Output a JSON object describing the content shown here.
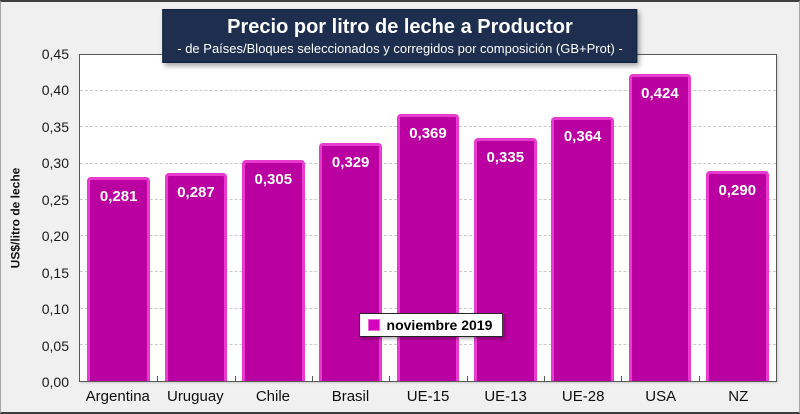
{
  "header": {
    "title": "Precio por litro de leche a Productor",
    "subtitle": "-  de Países/Bloques seleccionados y corregidos por composición (GB+Prot) -"
  },
  "legend": {
    "label": "noviembre 2019",
    "marker_color": "#d400bc"
  },
  "colors": {
    "title_background": "#1d2e4e",
    "bar_fill": "#ba00a0",
    "bar_border": "#e93bd0",
    "plot_background": "#ffffff",
    "chart_background": "#f1f0f1",
    "gridline": "#c9c9c9"
  },
  "chart_data": {
    "type": "bar",
    "title": "Precio por litro de leche a Productor",
    "subtitle": "-  de Países/Bloques seleccionados y corregidos por composición (GB+Prot) -",
    "categories": [
      "Argentina",
      "Uruguay",
      "Chile",
      "Brasil",
      "UE-15",
      "UE-13",
      "UE-28",
      "USA",
      "NZ"
    ],
    "values": [
      0.281,
      0.287,
      0.305,
      0.329,
      0.369,
      0.335,
      0.364,
      0.424,
      0.29
    ],
    "value_labels": [
      "0,281",
      "0,287",
      "0,305",
      "0,329",
      "0,369",
      "0,335",
      "0,364",
      "0,424",
      "0,290"
    ],
    "series_name": "noviembre 2019",
    "xlabel": "",
    "ylabel": "US$/litro de leche",
    "ylim": [
      0,
      0.45
    ],
    "ytick_step": 0.05,
    "ytick_labels": [
      "0,00",
      "0,05",
      "0,10",
      "0,15",
      "0,20",
      "0,25",
      "0,30",
      "0,35",
      "0,40",
      "0,45"
    ],
    "grid": "horizontal-dashed",
    "legend_position": "bottom-center-inside"
  }
}
